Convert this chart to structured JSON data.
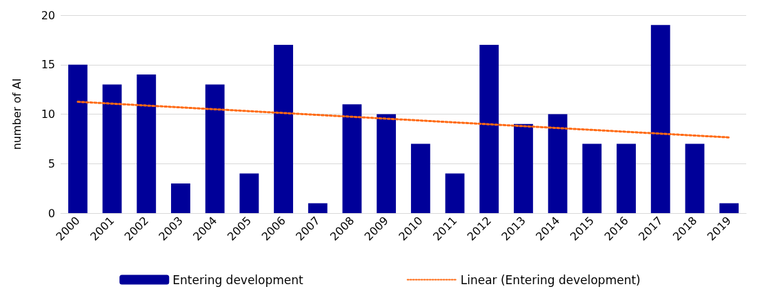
{
  "chart_data": {
    "type": "bar",
    "ylabel": "number of AI",
    "categories": [
      "2000",
      "2001",
      "2002",
      "2003",
      "2004",
      "2005",
      "2006",
      "2007",
      "2008",
      "2009",
      "2010",
      "2011",
      "2012",
      "2013",
      "2014",
      "2015",
      "2016",
      "2017",
      "2018",
      "2019"
    ],
    "series": [
      {
        "name": "Entering development",
        "color": "#000099",
        "values": [
          15,
          13,
          14,
          3,
          13,
          4,
          17,
          1,
          11,
          10,
          7,
          4,
          17,
          9,
          10,
          7,
          7,
          19,
          7,
          1
        ]
      },
      {
        "name": "Linear (Entering development)",
        "type": "line",
        "color": "#ff6a13",
        "values": [
          11.25,
          null,
          null,
          null,
          null,
          null,
          null,
          null,
          null,
          null,
          null,
          null,
          null,
          null,
          null,
          null,
          null,
          null,
          null,
          7.65
        ]
      }
    ],
    "ylim": [
      0,
      20
    ],
    "yticks": [
      0,
      5,
      10,
      15,
      20
    ],
    "grid": "y",
    "legend": "bottom",
    "line_style": "dotted",
    "marker": "none"
  }
}
